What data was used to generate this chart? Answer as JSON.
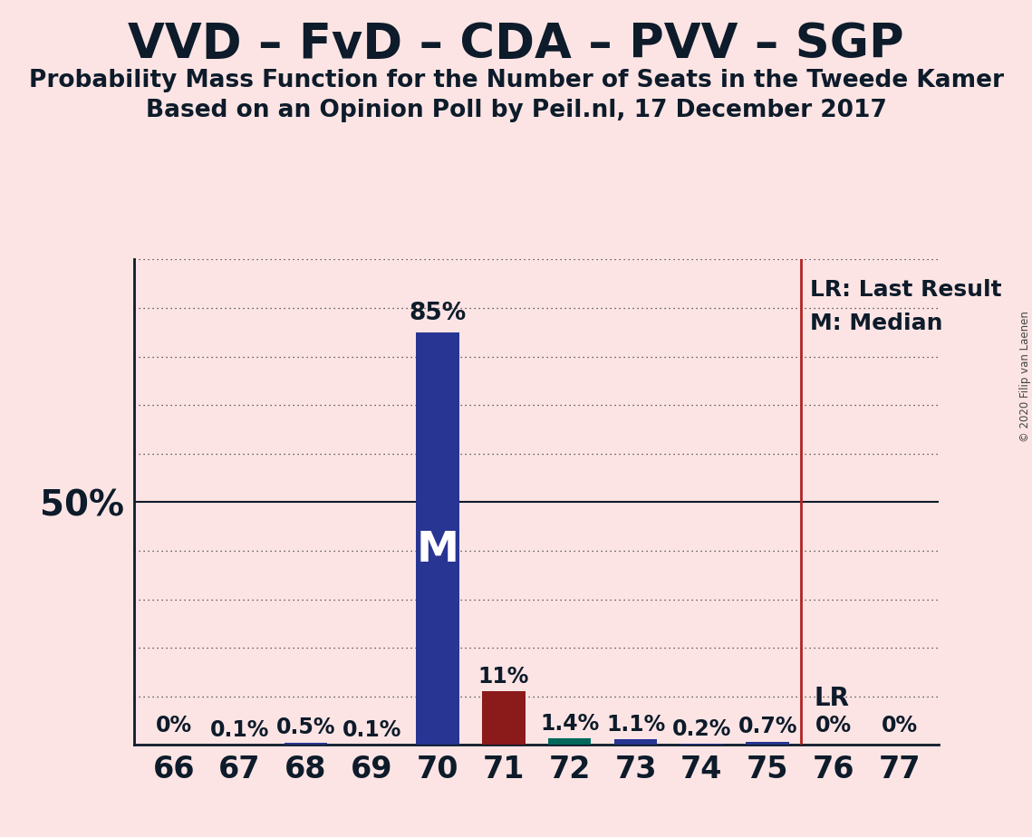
{
  "title": "VVD – FvD – CDA – PVV – SGP",
  "subtitle1": "Probability Mass Function for the Number of Seats in the Tweede Kamer",
  "subtitle2": "Based on an Opinion Poll by Peil.nl, 17 December 2017",
  "copyright": "© 2020 Filip van Laenen",
  "background_color": "#fce4e4",
  "categories": [
    66,
    67,
    68,
    69,
    70,
    71,
    72,
    73,
    74,
    75,
    76,
    77
  ],
  "values": [
    0.0,
    0.1,
    0.5,
    0.1,
    85.0,
    11.0,
    1.4,
    1.1,
    0.2,
    0.7,
    0.0,
    0.0
  ],
  "labels": [
    "0%",
    "0.1%",
    "0.5%",
    "0.1%",
    "85%",
    "11%",
    "1.4%",
    "1.1%",
    "0.2%",
    "0.7%",
    "0%",
    "0%"
  ],
  "bar_colors": [
    "#283593",
    "#283593",
    "#283593",
    "#283593",
    "#283593",
    "#8b1a1a",
    "#00695c",
    "#283593",
    "#283593",
    "#283593",
    "#283593",
    "#283593"
  ],
  "median_bar": 70,
  "median_label": "M",
  "lr_seat": 75.5,
  "lr_label": "LR",
  "lr_legend": "LR: Last Result",
  "m_legend": "M: Median",
  "ylim": [
    0,
    100
  ],
  "yticks": [
    0,
    10,
    20,
    30,
    40,
    50,
    60,
    70,
    80,
    90,
    100
  ],
  "ytick_labels_show": [
    50
  ],
  "axis_color": "#0d1b2a",
  "title_fontsize": 38,
  "subtitle_fontsize": 19,
  "label_fontsize": 17,
  "tick_fontsize": 24,
  "median_fontsize": 34,
  "lr_legend_fontsize": 18
}
